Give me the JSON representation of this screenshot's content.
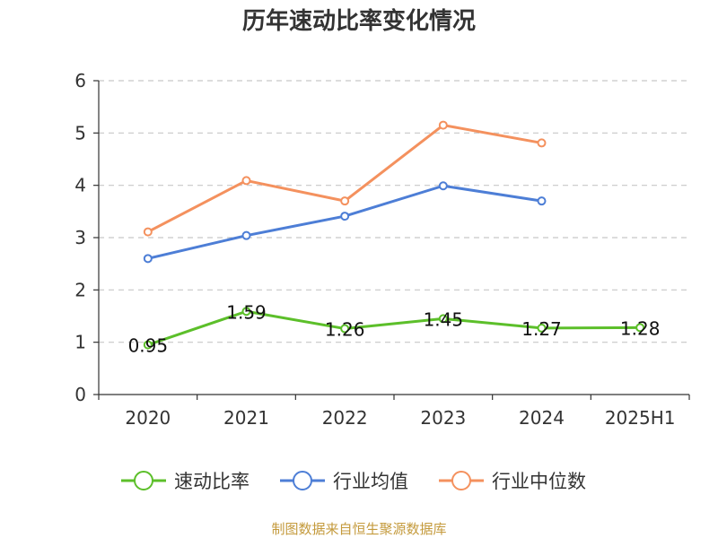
{
  "chart_data": {
    "type": "line",
    "title": "历年速动比率变化情况",
    "xlabel": "",
    "ylabel": "",
    "categories": [
      "2020",
      "2021",
      "2022",
      "2023",
      "2024",
      "2025H1"
    ],
    "ylim": [
      0,
      6
    ],
    "yticks": [
      0,
      1,
      2,
      3,
      4,
      5,
      6
    ],
    "grid": true,
    "legend_position": "bottom",
    "series": [
      {
        "name": "速动比率",
        "color": "#5cbf2a",
        "labeled": true,
        "values": [
          0.95,
          1.59,
          1.26,
          1.45,
          1.27,
          1.28
        ],
        "labels": [
          "0.95",
          "1.59",
          "1.26",
          "1.45",
          "1.27",
          "1.28"
        ]
      },
      {
        "name": "行业均值",
        "color": "#4d7ed6",
        "labeled": false,
        "values": [
          2.6,
          3.04,
          3.41,
          3.99,
          3.7,
          null
        ]
      },
      {
        "name": "行业中位数",
        "color": "#f4915e",
        "labeled": false,
        "values": [
          3.11,
          4.09,
          3.7,
          5.15,
          4.81,
          null
        ]
      }
    ]
  },
  "source": {
    "text": "制图数据来自恒生聚源数据库",
    "color": "#c49a3c"
  }
}
